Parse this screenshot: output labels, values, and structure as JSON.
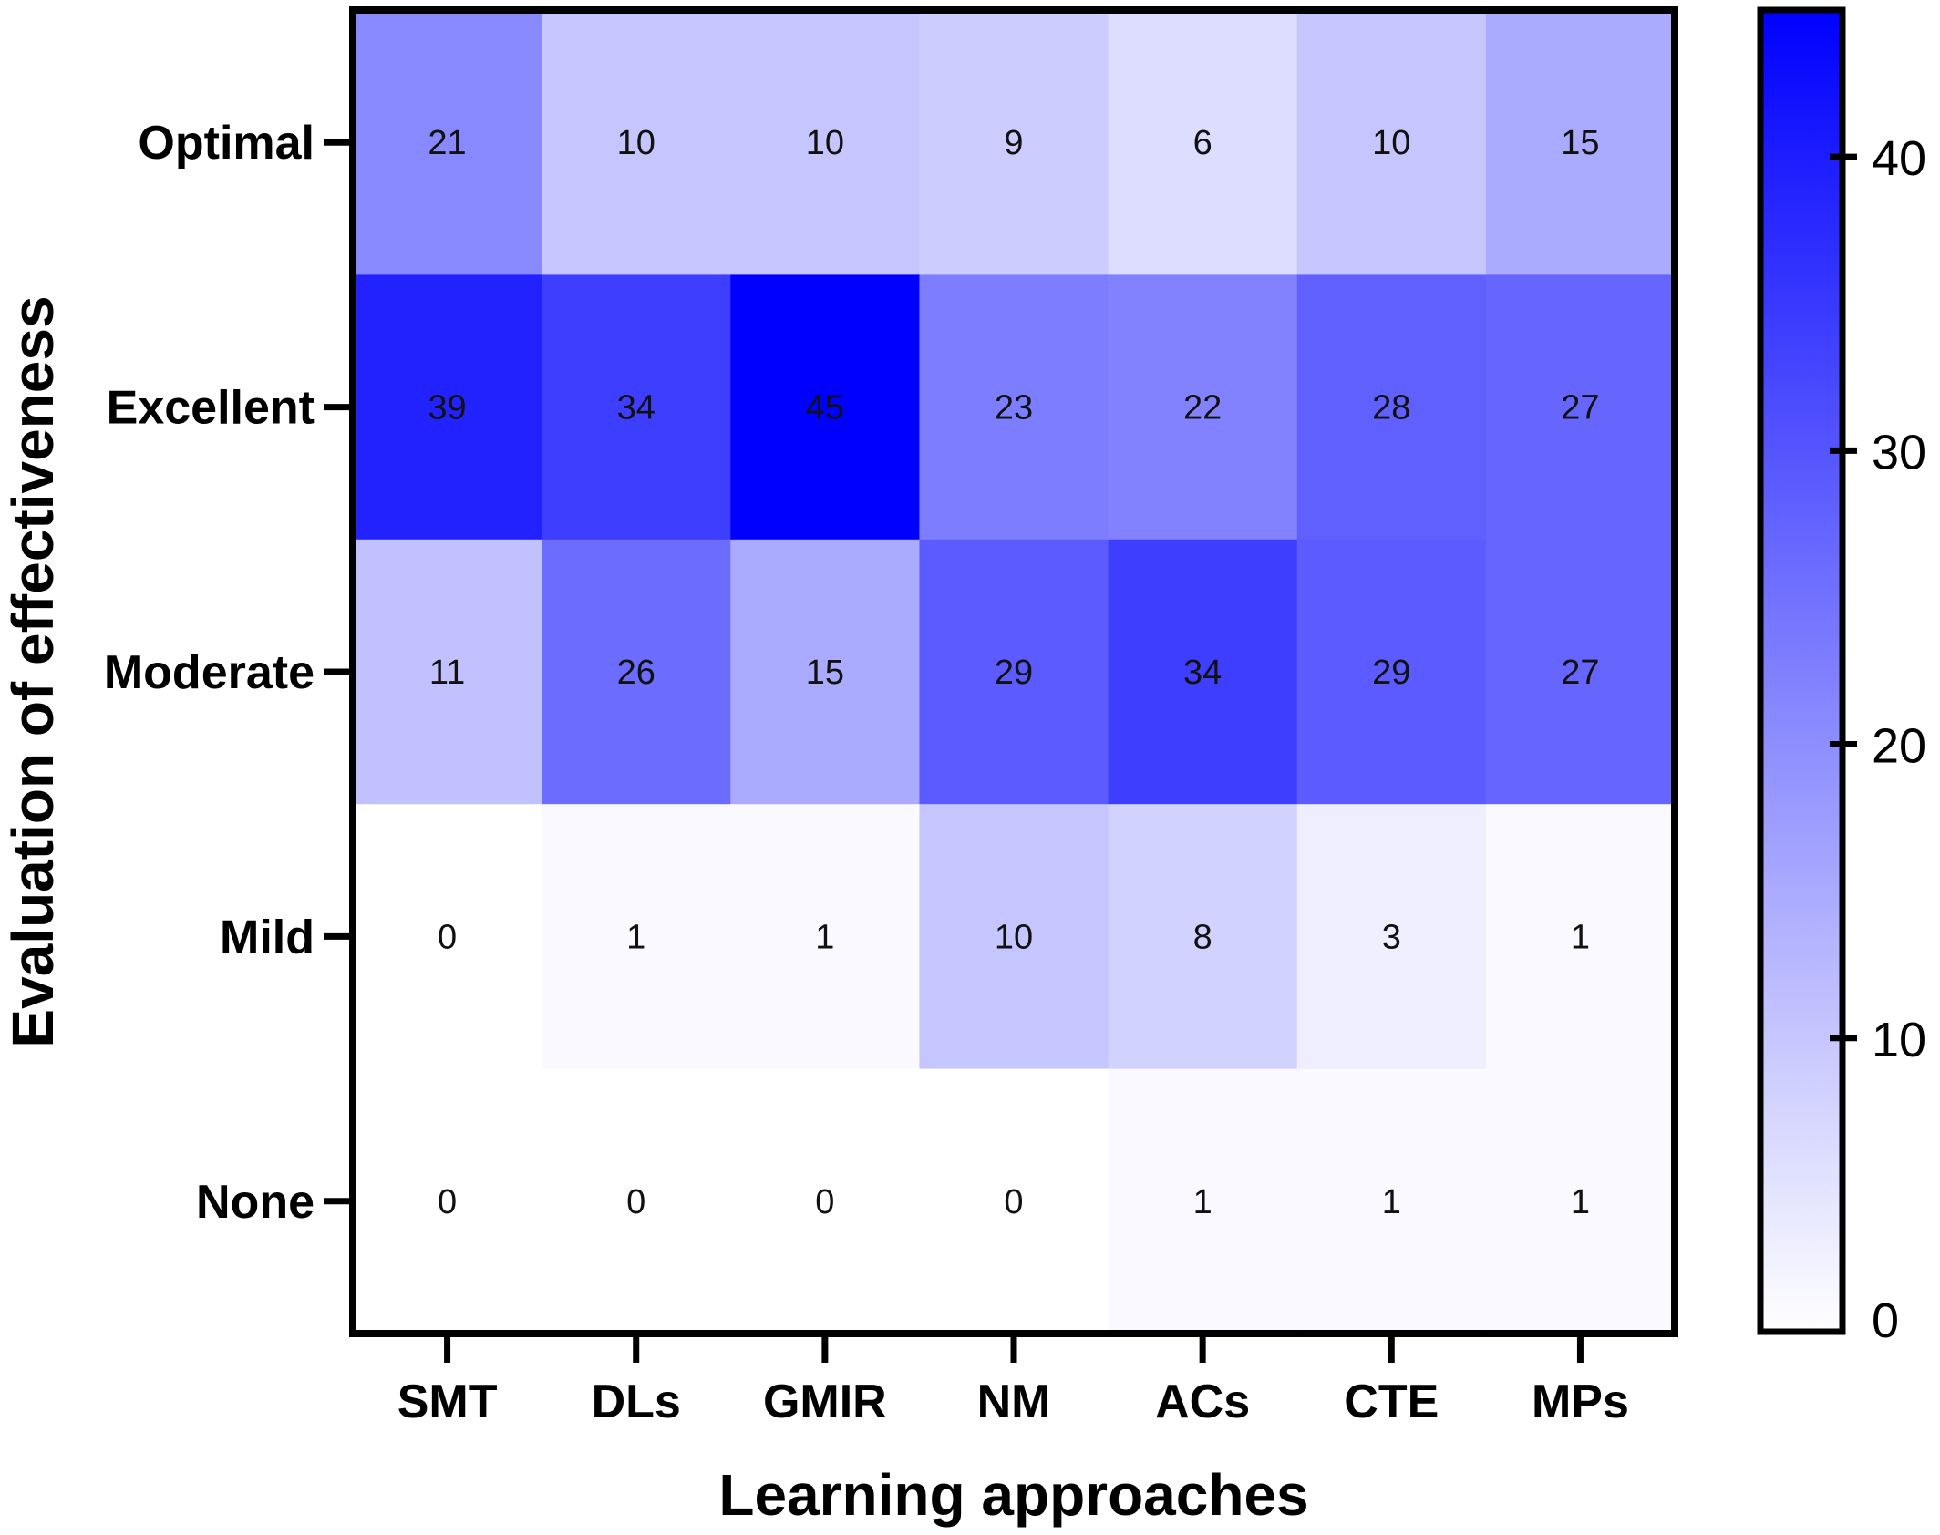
{
  "chart_data": {
    "type": "heatmap",
    "title": "",
    "xlabel": "Learning approaches",
    "ylabel": "Evaluation of effectiveness",
    "x_categories": [
      "SMT",
      "DLs",
      "GMIR",
      "NM",
      "ACs",
      "CTE",
      "MPs"
    ],
    "y_categories": [
      "Optimal",
      "Excellent",
      "Moderate",
      "Mild",
      "None"
    ],
    "values": [
      [
        21,
        10,
        10,
        9,
        6,
        10,
        15
      ],
      [
        39,
        34,
        45,
        23,
        22,
        28,
        27
      ],
      [
        11,
        26,
        15,
        29,
        34,
        29,
        27
      ],
      [
        0,
        1,
        1,
        10,
        8,
        3,
        1
      ],
      [
        0,
        0,
        0,
        0,
        1,
        1,
        1
      ]
    ],
    "colorbar": {
      "min": 0,
      "max": 45,
      "ticks": [
        0,
        10,
        20,
        30,
        40
      ],
      "tick_labels": [
        "0",
        "10",
        "20",
        "30",
        "40"
      ],
      "color_low": "#ffffff",
      "color_high": "#0000ff"
    }
  }
}
